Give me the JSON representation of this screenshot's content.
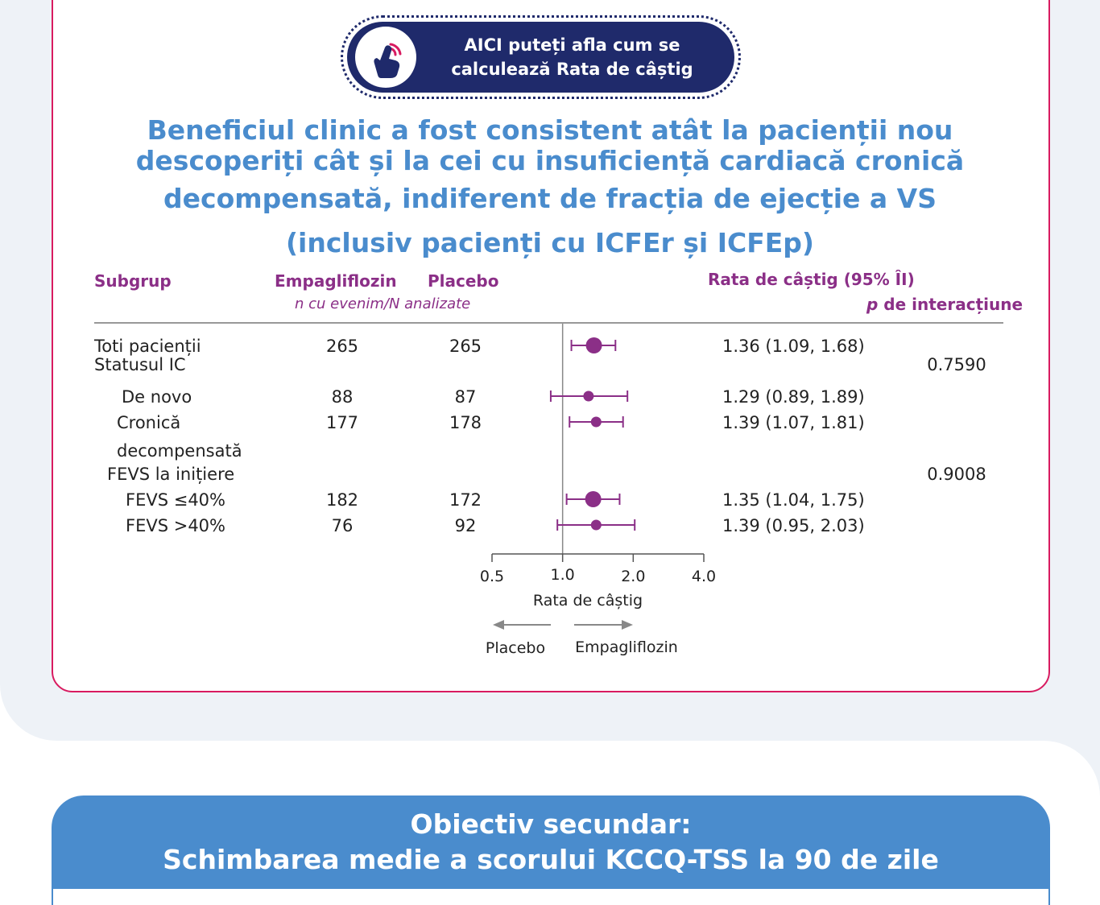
{
  "cta": {
    "line1": "AICI puteți afla cum se",
    "line2": "calculează Rata de câștig",
    "icon": "hand-pointer-icon"
  },
  "headline": {
    "line1": "Beneficiul clinic a fost consistent atât la pacienții nou",
    "line2": "descoperiți cât și la cei cu insuficiență cardiacă cronică",
    "line3": "decompensată, indiferent de fracția de ejecție a VS",
    "line4": "(inclusiv pacienți  cu ICFEr și ICFEp)"
  },
  "secondary": {
    "line1": "Obiectiv secundar:",
    "line2": "Schimbarea medie a scorului KCCQ-TSS la 90 de zile"
  },
  "colors": {
    "accent_blue": "#4a8ccd",
    "navy": "#1f2a6b",
    "purple": "#8b2f87",
    "border_pink": "#d81b60"
  },
  "chart_data": {
    "type": "forest",
    "headers": {
      "subgroup": "Subgrup",
      "empa": "Empagliflozin",
      "placebo": "Placebo",
      "counts_note": "n cu evenim/N analizate",
      "ratio": "Rata de câștig (95% ÎI)",
      "p_prefix": "p",
      "p_label": " de interacțiune"
    },
    "rows": [
      {
        "label": [
          "Toti pacienții"
        ],
        "indent": 0,
        "empa": "265",
        "placebo": "265",
        "ratio_text": "1.36 (1.09, 1.68)",
        "est": 1.36,
        "lo": 1.09,
        "hi": 1.68,
        "big": true
      },
      {
        "label": [
          "Statusul IC"
        ],
        "indent": 0,
        "p": "0.7590"
      },
      {
        "label": [
          "De novo"
        ],
        "indent": 2,
        "empa": "88",
        "placebo": "87",
        "ratio_text": "1.29 (0.89, 1.89)",
        "est": 1.29,
        "lo": 0.89,
        "hi": 1.89
      },
      {
        "label": [
          "Cronică",
          "decompensată"
        ],
        "indent": 1,
        "empa": "177",
        "placebo": "178",
        "ratio_text": "1.39 (1.07, 1.81)",
        "est": 1.39,
        "lo": 1.07,
        "hi": 1.81
      },
      {
        "label": [
          "FEVS la inițiere"
        ],
        "indent": 0.5,
        "p": "0.9008"
      },
      {
        "label": [
          "FEVS ≤40%"
        ],
        "indent": 1.5,
        "empa": "182",
        "placebo": "172",
        "ratio_text": "1.35 (1.04, 1.75)",
        "est": 1.35,
        "lo": 1.04,
        "hi": 1.75,
        "big": true
      },
      {
        "label": [
          "FEVS >40%"
        ],
        "indent": 1.5,
        "empa": "76",
        "placebo": "92",
        "ratio_text": "1.39 (0.95, 2.03)",
        "est": 1.39,
        "lo": 0.95,
        "hi": 2.03
      }
    ],
    "x_axis": {
      "scale": "log",
      "ticks": [
        0.5,
        1.0,
        2.0,
        4.0
      ],
      "tick_labels": [
        "0.5",
        "1.0",
        "2.0",
        "4.0"
      ],
      "range": [
        0.5,
        4.0
      ],
      "reference": 1.0,
      "label": "Rata de câștig"
    },
    "favors": {
      "left": "Placebo",
      "right": "Empagliflozin"
    }
  }
}
